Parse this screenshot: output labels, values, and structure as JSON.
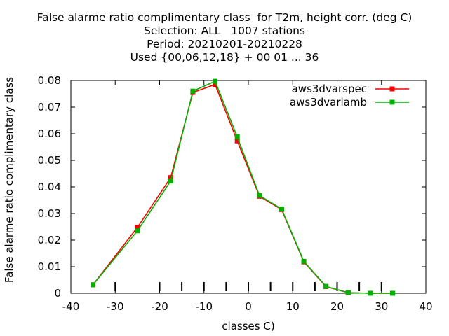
{
  "title_lines": [
    "False alarme ratio complimentary class  for T2m, height corr. (deg C)",
    "Selection: ALL   1007 stations",
    "Period: 20210201-20210228",
    "Used {00,06,12,18} + 00 01 ... 36"
  ],
  "chart_data": {
    "type": "line",
    "title": "False alarme ratio complimentary class  for T2m, height corr. (deg C)",
    "xlabel": "classes C)",
    "ylabel": "False alarme ratio complimentary class",
    "xlim": [
      -40,
      40
    ],
    "ylim": [
      0,
      0.08
    ],
    "xticks": [
      -40,
      -30,
      -20,
      -10,
      0,
      10,
      20,
      30,
      40
    ],
    "yticks": [
      0,
      0.01,
      0.02,
      0.03,
      0.04,
      0.05,
      0.06,
      0.07,
      0.08
    ],
    "xtick_labels": [
      "-40",
      "-30",
      "-20",
      "-10",
      "0",
      "10",
      "20",
      "30",
      "40"
    ],
    "ytick_labels": [
      "0",
      "0.01",
      "0.02",
      "0.03",
      "0.04",
      "0.05",
      "0.06",
      "0.07",
      "0.08"
    ],
    "class_marks": [
      -30,
      -20,
      -15,
      -10,
      -5,
      0,
      5,
      10,
      15,
      20,
      25,
      30
    ],
    "legend_position": "top-right",
    "grid": false,
    "series": [
      {
        "name": "aws3dvarspec",
        "color": "#ff0000",
        "x": [
          -35,
          -25,
          -17.5,
          -12.5,
          -7.5,
          -2.5,
          2.5,
          7.5,
          12.5,
          17.5,
          22.5,
          27.5,
          32.5
        ],
        "y": [
          0.0032,
          0.0248,
          0.0435,
          0.0755,
          0.0785,
          0.0573,
          0.0365,
          0.0315,
          0.0118,
          0.0025,
          0.0002,
          0.0,
          0.0
        ]
      },
      {
        "name": "aws3dvarlamb",
        "color": "#00b000",
        "x": [
          -35,
          -25,
          -17.5,
          -12.5,
          -7.5,
          -2.5,
          2.5,
          7.5,
          12.5,
          17.5,
          22.5,
          27.5,
          32.5
        ],
        "y": [
          0.0032,
          0.0235,
          0.0422,
          0.076,
          0.0797,
          0.0588,
          0.0368,
          0.0317,
          0.012,
          0.0026,
          0.0002,
          0.0,
          0.0
        ]
      }
    ]
  }
}
